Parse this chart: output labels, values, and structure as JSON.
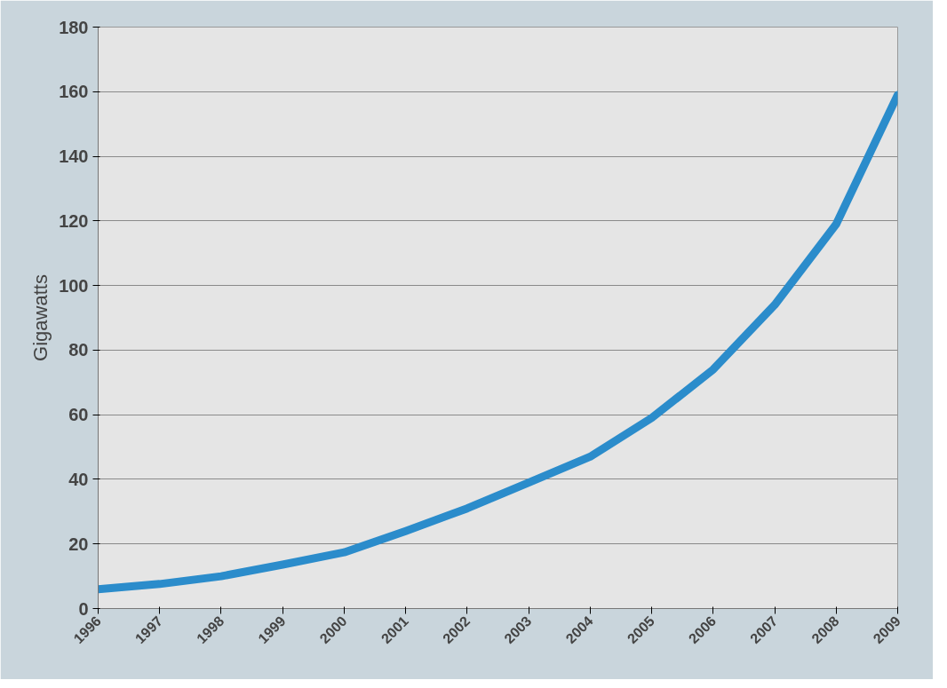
{
  "chart_data": {
    "type": "line",
    "ylabel": "Gigawatts",
    "x": [
      1996,
      1997,
      1998,
      1999,
      2000,
      2001,
      2002,
      2003,
      2004,
      2005,
      2006,
      2007,
      2008,
      2009
    ],
    "series": [
      {
        "color": "#2b8ccb",
        "values": [
          6,
          7.6,
          10,
          13.6,
          17.4,
          24,
          31,
          39,
          47,
          59,
          74,
          94,
          119,
          159
        ]
      }
    ],
    "xlim": [
      1996,
      2009
    ],
    "xticks": [
      1996,
      1997,
      1998,
      1999,
      2000,
      2001,
      2002,
      2003,
      2004,
      2005,
      2006,
      2007,
      2008,
      2009
    ],
    "ylim": [
      0,
      180
    ],
    "yticks": [
      0,
      20,
      40,
      60,
      80,
      100,
      120,
      140,
      160,
      180
    ],
    "grid": "y",
    "marker": "none",
    "line_style": "solid"
  }
}
